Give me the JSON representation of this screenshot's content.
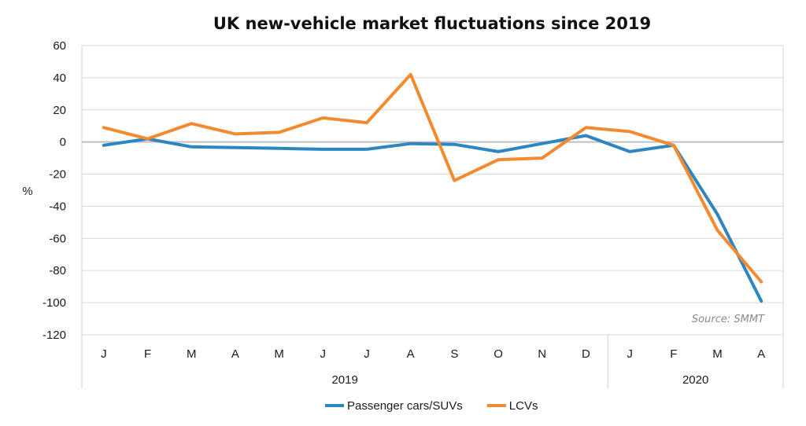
{
  "chart_data": {
    "type": "line",
    "title": "UK new-vehicle market fluctuations since 2019",
    "ylabel": "%",
    "xlabel": "",
    "ylim": [
      -120,
      60
    ],
    "yticks": [
      60,
      40,
      20,
      0,
      -20,
      -40,
      -60,
      -80,
      -100,
      -120
    ],
    "categories": [
      "J",
      "F",
      "M",
      "A",
      "M",
      "J",
      "J",
      "A",
      "S",
      "O",
      "N",
      "D",
      "J",
      "F",
      "M",
      "A"
    ],
    "groups": [
      {
        "label": "2019",
        "count": 12
      },
      {
        "label": "2020",
        "count": 4
      }
    ],
    "series": [
      {
        "name": "Passenger cars/SUVs",
        "color": "#2e86c1",
        "values": [
          -2,
          2,
          -3,
          -3.5,
          -4,
          -4.5,
          -4.5,
          -1,
          -1.5,
          -6,
          -1,
          4,
          -6,
          -2,
          -45,
          -99
        ]
      },
      {
        "name": "LCVs",
        "color": "#f28b30",
        "values": [
          9,
          2,
          11.5,
          5,
          6,
          15,
          12,
          42,
          -24,
          -11,
          -10,
          9,
          6.5,
          -2,
          -55,
          -87
        ]
      }
    ],
    "grid": true,
    "legend_position": "bottom-center",
    "source_note": "Source: SMMT",
    "colors": {
      "grid": "#d9d9d9",
      "zero_line": "#bfbfbf",
      "frame": "#d0d0d0"
    }
  }
}
